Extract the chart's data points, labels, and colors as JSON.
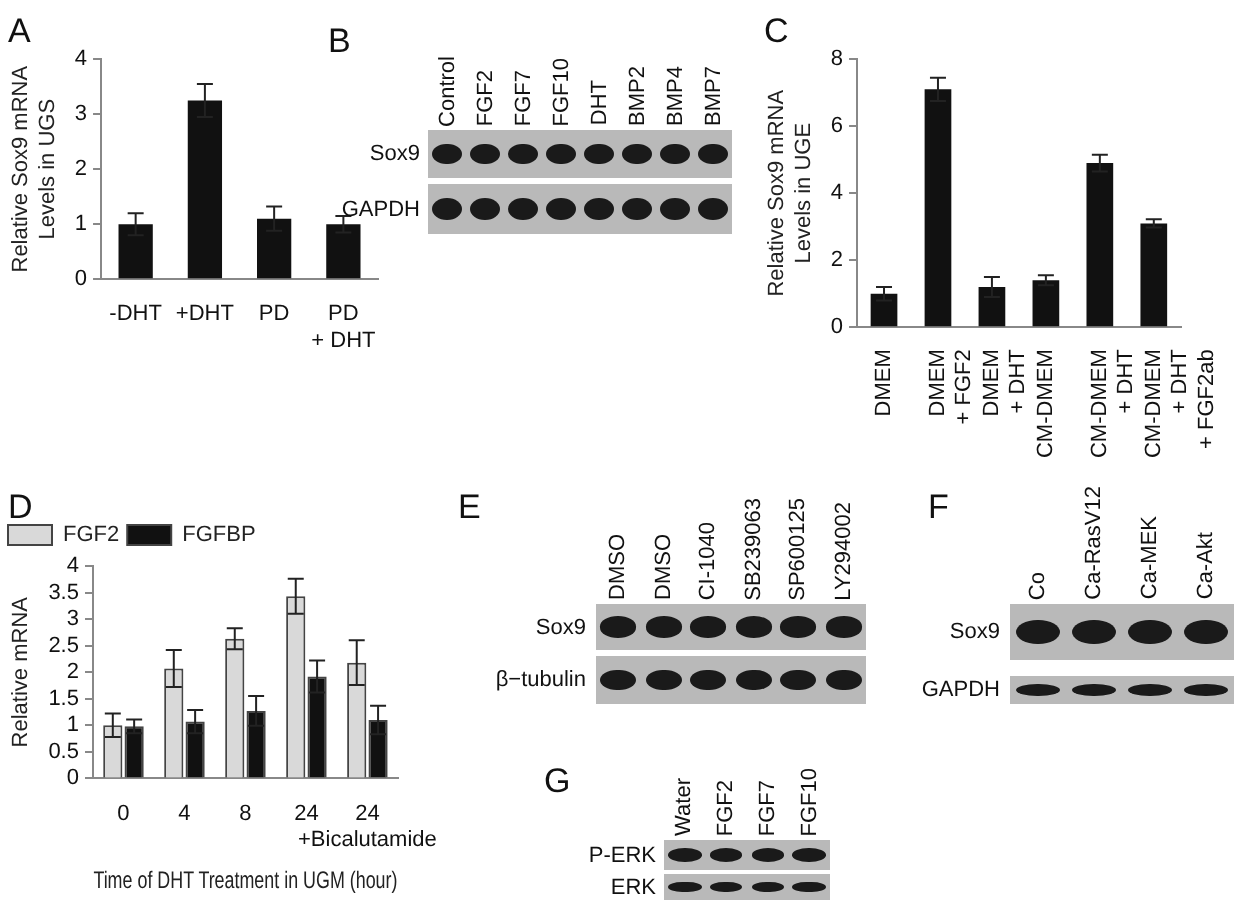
{
  "chart_data": [
    {
      "type": "bar",
      "title": "A",
      "ylabel": "Relative Sox9 mRNA Levels in UGS",
      "categories": [
        "-DHT",
        "+DHT",
        "PD",
        "PD + DHT"
      ],
      "values": [
        1.0,
        3.25,
        1.1,
        1.0
      ],
      "errors": [
        0.2,
        0.3,
        0.22,
        0.15
      ],
      "color": "#111111",
      "ylim": [
        0,
        4
      ],
      "yticks": [
        0,
        1,
        2,
        3,
        4
      ],
      "grid": false,
      "legend": false
    },
    {
      "type": "other",
      "title": "B",
      "categories": [
        "Control",
        "FGF2",
        "FGF7",
        "FGF10",
        "DHT",
        "BMP2",
        "BMP4",
        "BMP7"
      ],
      "annotations": [
        "Sox9",
        "GAPDH"
      ]
    },
    {
      "type": "bar",
      "title": "C",
      "ylabel": "Relative Sox9 mRNA Levels in UGE",
      "categories": [
        "DMEM",
        "DMEM + FGF2",
        "DMEM + DHT",
        "CM-DMEM",
        "CM-DMEM + DHT",
        "CM-DMEM + DHT + FGF2ab"
      ],
      "values": [
        1.0,
        7.1,
        1.2,
        1.4,
        4.9,
        3.1
      ],
      "errors": [
        0.2,
        0.35,
        0.3,
        0.15,
        0.25,
        0.12
      ],
      "color": "#111111",
      "ylim": [
        0,
        8
      ],
      "yticks": [
        0,
        2,
        4,
        6,
        8
      ],
      "grid": false,
      "legend": false
    },
    {
      "type": "bar",
      "title": "D",
      "xlabel": "Time of DHT Treatment in UGM (hour)",
      "ylabel": "Relative mRNA",
      "categories": [
        "0",
        "4",
        "8",
        "24",
        "24 +Bicalutamide"
      ],
      "series": [
        {
          "name": "FGF2",
          "color": "#d9d9d9",
          "values": [
            1.0,
            2.07,
            2.63,
            3.43,
            2.18
          ],
          "errors": [
            0.22,
            0.35,
            0.2,
            0.33,
            0.42
          ]
        },
        {
          "name": "FGFBP",
          "color": "#111111",
          "values": [
            0.98,
            1.07,
            1.27,
            1.92,
            1.1
          ],
          "errors": [
            0.13,
            0.22,
            0.28,
            0.3,
            0.27
          ]
        }
      ],
      "ylim": [
        0,
        4
      ],
      "yticks": [
        0,
        0.5,
        1,
        1.5,
        2,
        2.5,
        3,
        3.5,
        4
      ],
      "grid": false,
      "legend": "top left"
    },
    {
      "type": "other",
      "title": "E",
      "categories": [
        "DMSO",
        "DMSO",
        "CI-1040",
        "SB239063",
        "SP600125",
        "LY294002"
      ],
      "annotations": [
        "Sox9",
        "β−tubulin"
      ]
    },
    {
      "type": "other",
      "title": "F",
      "categories": [
        "Co",
        "Ca-RasV12",
        "Ca-MEK",
        "Ca-Akt"
      ],
      "annotations": [
        "Sox9",
        "GAPDH"
      ]
    },
    {
      "type": "other",
      "title": "G",
      "categories": [
        "Water",
        "FGF2",
        "FGF7",
        "FGF10"
      ],
      "annotations": [
        "P-ERK",
        "ERK"
      ]
    }
  ]
}
